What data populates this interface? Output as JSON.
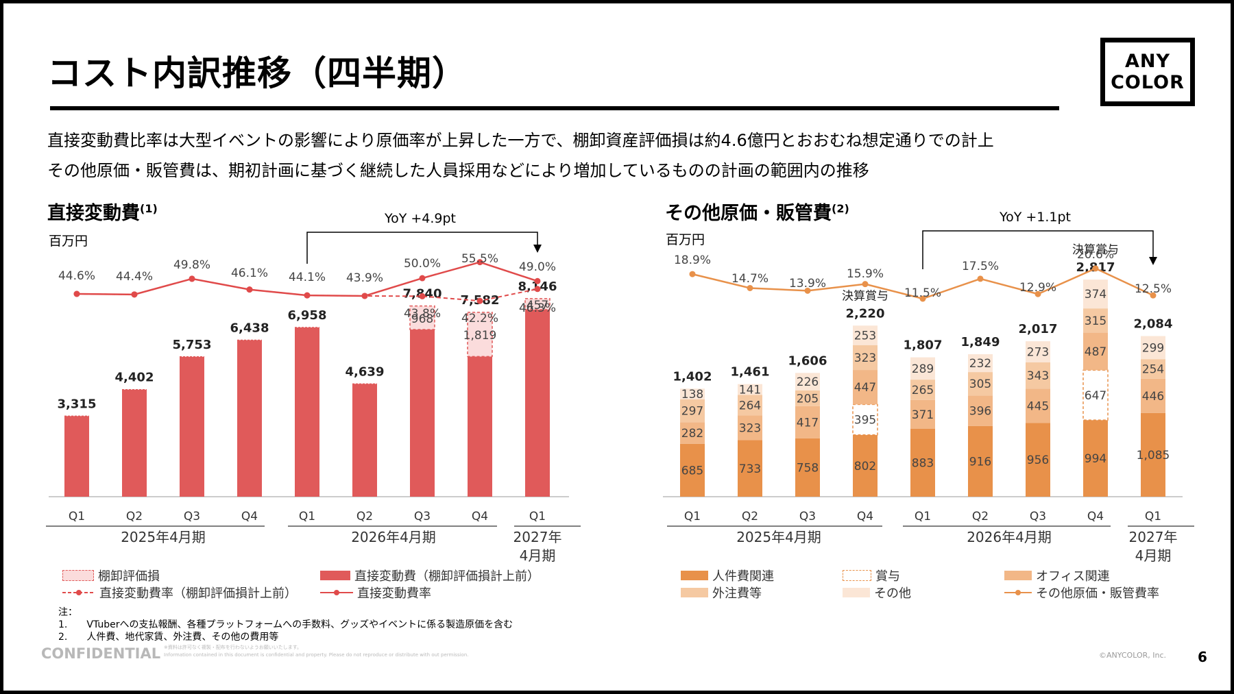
{
  "title": "コスト内訳推移（四半期）",
  "logo": {
    "line1": "ANY",
    "line2": "COLOR"
  },
  "lead": [
    "直接変動費比率は大型イベントの影響により原価率が上昇した一方で、棚卸資産評価損は約4.6億円とおおむね想定通りでの計上",
    "その他原価・販管費は、期初計画に基づく継続した人員採用などにより増加しているものの計画の範囲内の推移"
  ],
  "colors": {
    "red": "#e05a5a",
    "red_line": "#e04a4a",
    "red_pale": "#fbdcdc",
    "orange1": "#e8914a",
    "orange2": "#f2b787",
    "orange3": "#f5c9a2",
    "orange4": "#fbe6d6"
  },
  "chart_data": [
    {
      "type": "bar",
      "title": "直接変動費",
      "title_note": "(1)",
      "unit": "百万円",
      "categories": [
        "Q1",
        "Q2",
        "Q3",
        "Q4",
        "Q1",
        "Q2",
        "Q3",
        "Q4",
        "Q1"
      ],
      "period_groups": [
        {
          "label": "2025年4月期",
          "from": 0,
          "to": 3
        },
        {
          "label": "2026年4月期",
          "from": 4,
          "to": 7
        },
        {
          "label": "2027年\n4月期",
          "from": 8,
          "to": 8
        }
      ],
      "series": [
        {
          "name": "直接変動費（棚卸評価損計上前）",
          "values": [
            3315,
            4402,
            5753,
            6438,
            6958,
            4639,
            6872,
            5763,
            7689
          ]
        },
        {
          "name": "棚卸評価損",
          "values": [
            0,
            0,
            0,
            0,
            0,
            0,
            968,
            1819,
            457
          ]
        }
      ],
      "totals": [
        "3,315",
        "4,402",
        "5,753",
        "6,438",
        "6,958",
        "4,639",
        "7,840",
        "7,582",
        "8,146"
      ],
      "inventory_labels": [
        "",
        "",
        "",
        "",
        "",
        "",
        "968",
        "1,819",
        "457"
      ],
      "line_series": [
        {
          "name": "直接変動費率",
          "values": [
            44.6,
            44.4,
            49.8,
            46.1,
            44.1,
            43.9,
            50.0,
            55.5,
            49.0
          ],
          "labels": [
            "44.6%",
            "44.4%",
            "49.8%",
            "46.1%",
            "44.1%",
            "43.9%",
            "50.0%",
            "55.5%",
            "49.0%"
          ]
        },
        {
          "name": "直接変動費率（棚卸評価損計上前）",
          "values": [
            44.6,
            44.4,
            49.8,
            46.1,
            44.1,
            43.9,
            43.8,
            42.2,
            46.3
          ],
          "labels": [
            "",
            "",
            "",
            "",
            "",
            "",
            "43.8%",
            "42.2%",
            "46.3%"
          ]
        }
      ],
      "yoy": "YoY +4.9pt",
      "ylim": [
        0,
        10500
      ],
      "legend": [
        "棚卸評価損",
        "直接変動費（棚卸評価損計上前）",
        "直接変動費率（棚卸評価損計上前）",
        "直接変動費率"
      ]
    },
    {
      "type": "bar",
      "title": "その他原価・販管費",
      "title_note": "(2)",
      "unit": "百万円",
      "categories": [
        "Q1",
        "Q2",
        "Q3",
        "Q4",
        "Q1",
        "Q2",
        "Q3",
        "Q4",
        "Q1"
      ],
      "period_groups": [
        {
          "label": "2025年4月期",
          "from": 0,
          "to": 3
        },
        {
          "label": "2026年4月期",
          "from": 4,
          "to": 7
        },
        {
          "label": "2027年\n4月期",
          "from": 8,
          "to": 8
        }
      ],
      "series": [
        {
          "name": "人件費関連",
          "values": [
            685,
            733,
            758,
            802,
            883,
            916,
            956,
            994,
            1085
          ]
        },
        {
          "name": "賞与",
          "values": [
            0,
            0,
            0,
            395,
            0,
            0,
            0,
            647,
            0
          ]
        },
        {
          "name": "オフィス関連",
          "values": [
            282,
            323,
            417,
            447,
            371,
            396,
            445,
            487,
            446
          ]
        },
        {
          "name": "外注費等",
          "values": [
            297,
            264,
            205,
            323,
            265,
            305,
            343,
            315,
            254
          ]
        },
        {
          "name": "その他",
          "values": [
            138,
            141,
            226,
            253,
            289,
            232,
            273,
            374,
            299
          ]
        }
      ],
      "value_labels": [
        [
          "685",
          "733",
          "758",
          "802",
          "883",
          "916",
          "956",
          "994",
          "1,085"
        ],
        [
          "",
          "",
          "",
          "395",
          "",
          "",
          "",
          "647",
          ""
        ],
        [
          "282",
          "323",
          "417",
          "447",
          "371",
          "396",
          "445",
          "487",
          "446"
        ],
        [
          "297",
          "264",
          "205",
          "323",
          "265",
          "305",
          "343",
          "315",
          "254"
        ],
        [
          "138",
          "141",
          "226",
          "253",
          "289",
          "232",
          "273",
          "374",
          "299"
        ]
      ],
      "totals": [
        "1,402",
        "1,461",
        "1,606",
        "2,220",
        "1,807",
        "1,849",
        "2,017",
        "2,817",
        "2,084"
      ],
      "bonus_notes": [
        "",
        "",
        "",
        "決算賞与",
        "",
        "",
        "",
        "決算賞与",
        ""
      ],
      "line_series": [
        {
          "name": "その他原価・販管費率",
          "values": [
            18.9,
            14.7,
            13.9,
            15.9,
            11.5,
            17.5,
            12.9,
            20.6,
            12.5
          ],
          "labels": [
            "18.9%",
            "14.7%",
            "13.9%",
            "15.9%",
            "11.5%",
            "17.5%",
            "12.9%",
            "20.6%",
            "12.5%"
          ]
        }
      ],
      "yoy": "YoY +1.1pt",
      "ylim": [
        0,
        5200
      ],
      "legend": [
        "人件費関連",
        "賞与",
        "オフィス関連",
        "外注費等",
        "その他",
        "その他原価・販管費率"
      ]
    }
  ],
  "notes": {
    "heading": "注：",
    "items": [
      "1.　　VTuberへの支払報酬、各種プラットフォームへの手数料、グッズやイベントに係る製造原価を含む",
      "2.　　人件費、地代家賃、外注費、その他の費用等"
    ]
  },
  "footer": {
    "confidential": "CONFIDENTIAL",
    "note1": "※資料は許可なく複製・配布を行わないようお願いいたします。",
    "note2": "Information contained in this document is confidential and property. Please do not reproduce or distribute with out permission.",
    "copyright": "©ANYCOLOR, Inc.",
    "page": "6"
  }
}
